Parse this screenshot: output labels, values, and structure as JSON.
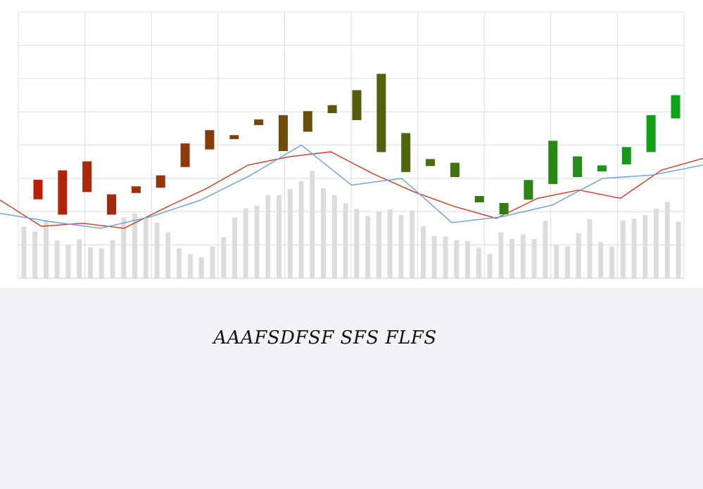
{
  "caption": "AAAFSDFSF SFS FLFS",
  "chart_data": {
    "type": "candlestick",
    "title": "",
    "xlabel": "",
    "ylabel": "",
    "grid": true,
    "ylim": [
      0,
      8
    ],
    "volume_ylim": [
      0,
      8
    ],
    "candles": [
      {
        "open": 2.37,
        "close": 2.96
      },
      {
        "open": 1.91,
        "close": 3.24
      },
      {
        "open": 2.59,
        "close": 3.51
      },
      {
        "open": 1.91,
        "close": 2.52
      },
      {
        "open": 2.56,
        "close": 2.76
      },
      {
        "open": 2.72,
        "close": 3.09
      },
      {
        "open": 3.34,
        "close": 4.05
      },
      {
        "open": 3.87,
        "close": 4.45
      },
      {
        "open": 4.18,
        "close": 4.3
      },
      {
        "open": 4.6,
        "close": 4.77
      },
      {
        "open": 3.82,
        "close": 4.9
      },
      {
        "open": 4.4,
        "close": 5.02
      },
      {
        "open": 4.96,
        "close": 5.2
      },
      {
        "open": 4.75,
        "close": 5.65
      },
      {
        "open": 3.79,
        "close": 6.14
      },
      {
        "open": 3.19,
        "close": 4.36
      },
      {
        "open": 3.37,
        "close": 3.58
      },
      {
        "open": 3.04,
        "close": 3.47
      },
      {
        "open": 2.28,
        "close": 2.47
      },
      {
        "open": 1.92,
        "close": 2.26
      },
      {
        "open": 2.36,
        "close": 2.95
      },
      {
        "open": 2.83,
        "close": 4.13
      },
      {
        "open": 3.04,
        "close": 3.66
      },
      {
        "open": 3.21,
        "close": 3.39
      },
      {
        "open": 3.42,
        "close": 3.94
      },
      {
        "open": 3.79,
        "close": 4.9
      },
      {
        "open": 4.8,
        "close": 5.5
      }
    ],
    "volume": [
      1.55,
      1.4,
      1.75,
      1.13,
      1.0,
      1.17,
      0.93,
      0.9,
      1.14,
      1.83,
      1.95,
      1.8,
      1.67,
      1.38,
      0.9,
      0.72,
      0.63,
      0.95,
      1.24,
      1.83,
      2.1,
      2.18,
      2.5,
      2.5,
      2.68,
      2.92,
      3.23,
      2.7,
      2.5,
      2.25,
      2.08,
      1.87,
      2.0,
      2.07,
      1.9,
      2.04,
      1.56,
      1.27,
      1.25,
      1.14,
      1.12,
      0.92,
      0.73,
      1.38,
      1.18,
      1.32,
      1.18,
      1.73,
      1.01,
      0.96,
      1.35,
      1.78,
      1.09,
      0.95,
      1.74,
      1.79,
      1.9,
      2.09,
      2.29,
      1.7
    ],
    "series": [
      {
        "values": [
          2.35,
          1.56,
          1.65,
          1.5,
          2.12,
          2.7,
          3.4,
          3.65,
          3.8,
          3.15,
          2.6,
          2.15,
          1.8,
          2.4,
          2.65,
          2.4,
          3.25,
          3.6
        ]
      },
      {
        "values": [
          1.95,
          1.7,
          1.5,
          1.85,
          2.35,
          3.1,
          4.0,
          2.8,
          3.0,
          1.67,
          1.85,
          2.2,
          3.0,
          3.1,
          3.4
        ]
      }
    ],
    "colors": {
      "candle_start": "#b81e0a",
      "candle_mid": "#5a5a0c",
      "candle_end": "#0aa51a",
      "volume": "#dcdcdc",
      "line_red": "#cf3a1e",
      "line_blue": "#6a9ee0",
      "grid": "#dddddd",
      "axis": "#c8c8c8"
    }
  }
}
